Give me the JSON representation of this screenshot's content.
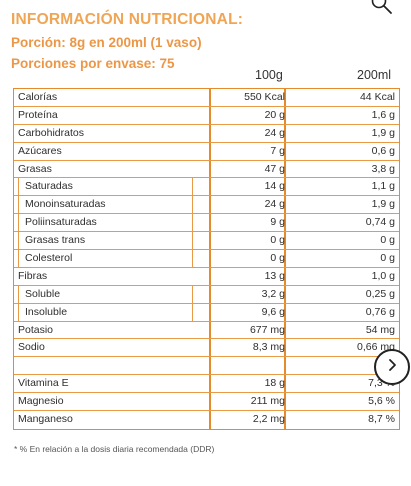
{
  "header": {
    "title": "INFORMACIÓN NUTRICIONAL:",
    "portion": "Porción: 8g en 200ml (1 vaso)",
    "per_pack": "Porciones por envase: 75",
    "col1": "100g",
    "col2": "200ml"
  },
  "rows": [
    {
      "label": "Calorías",
      "v1": "550 Kcal",
      "v2": "44 Kcal"
    },
    {
      "label": "Proteína",
      "v1": "20 g",
      "v2": "1,6 g"
    },
    {
      "label": "Carbohidratos",
      "v1": "24 g",
      "v2": "1,9 g"
    },
    {
      "label": "Azúcares",
      "v1": "7 g",
      "v2": "0,6 g"
    },
    {
      "label": "Grasas",
      "v1": "47 g",
      "v2": "3,8 g"
    },
    {
      "label": "Saturadas",
      "v1": "14 g",
      "v2": "1,1 g"
    },
    {
      "label": "Monoinsaturadas",
      "v1": "24 g",
      "v2": "1,9 g"
    },
    {
      "label": "Poliinsaturadas",
      "v1": "9 g",
      "v2": "0,74 g"
    },
    {
      "label": "Grasas trans",
      "v1": "0 g",
      "v2": "0 g"
    },
    {
      "label": "Colesterol",
      "v1": "0 g",
      "v2": "0 g"
    },
    {
      "label": "Fibras",
      "v1": "13 g",
      "v2": "1,0 g"
    },
    {
      "label": "Soluble",
      "v1": "3,2 g",
      "v2": "0,25 g"
    },
    {
      "label": "Insoluble",
      "v1": "9,6 g",
      "v2": "0,76 g"
    },
    {
      "label": "Potasio",
      "v1": "677 mg",
      "v2": "54 mg"
    },
    {
      "label": "Sodio",
      "v1": "8,3 mg",
      "v2": "0,66 mg"
    },
    {
      "label": "",
      "v1": "",
      "v2": ""
    },
    {
      "label": "Vitamina E",
      "v1": "18 g",
      "v2": "7,3 %"
    },
    {
      "label": "Magnesio",
      "v1": "211 mg",
      "v2": "5,6 %"
    },
    {
      "label": "Manganeso",
      "v1": "2,2 mg",
      "v2": "8,7 %"
    }
  ],
  "footnote": "* % En relación a la dosis diaria recomendada (DDR)",
  "icons": {
    "search": "search-icon",
    "next": "chevron-right-icon"
  }
}
